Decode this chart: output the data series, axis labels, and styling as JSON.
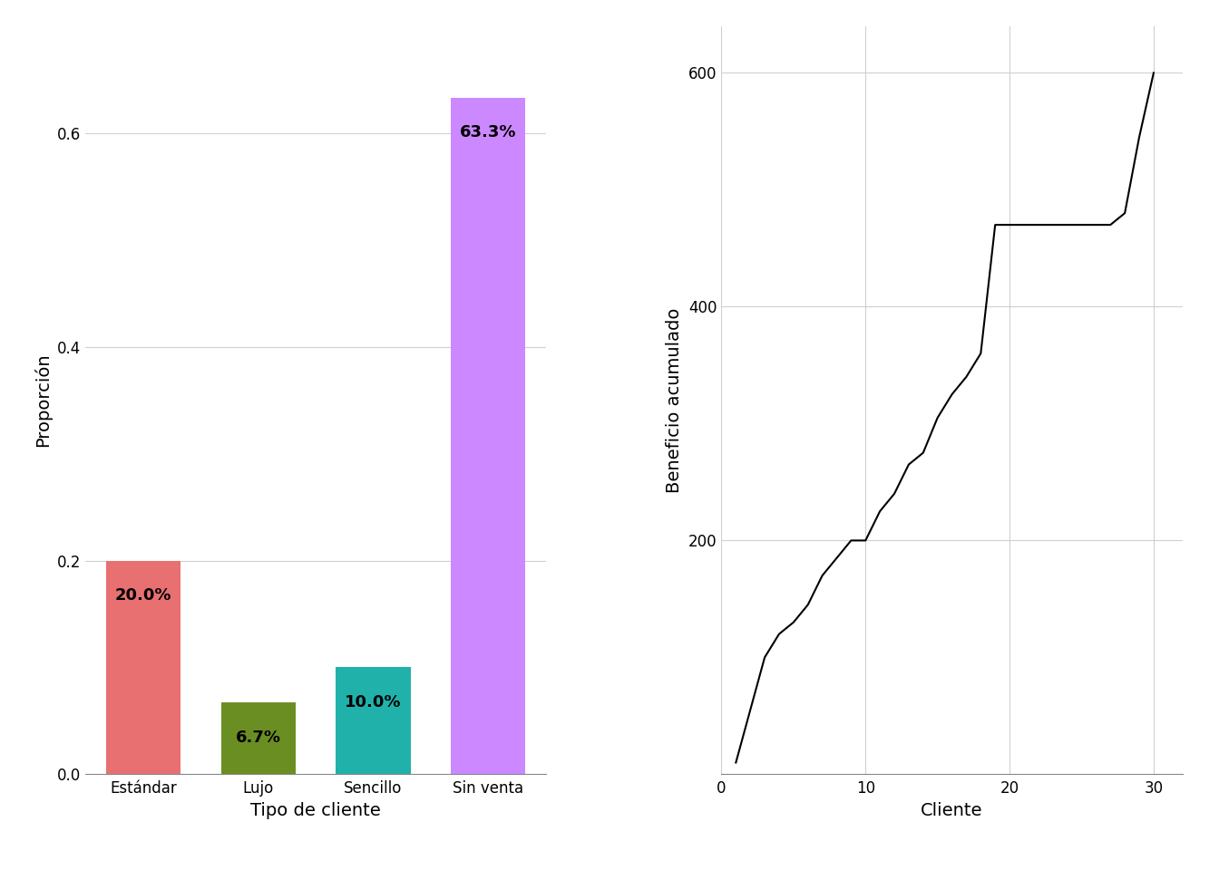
{
  "bar_categories": [
    "Estándar",
    "Lujo",
    "Sencillo",
    "Sin venta"
  ],
  "bar_values": [
    0.2,
    0.067,
    0.1,
    0.633
  ],
  "bar_labels": [
    "20.0%",
    "6.7%",
    "10.0%",
    "63.3%"
  ],
  "bar_colors": [
    "#E87070",
    "#6B8E23",
    "#20B2AA",
    "#CC88FF"
  ],
  "bar_xlabel": "Tipo de cliente",
  "bar_ylabel": "Proporción",
  "bar_ylim": [
    0,
    0.7
  ],
  "bar_yticks": [
    0.0,
    0.2,
    0.4,
    0.6
  ],
  "line_x": [
    1,
    2,
    3,
    4,
    5,
    6,
    7,
    8,
    9,
    10,
    11,
    12,
    13,
    14,
    15,
    16,
    17,
    18,
    19,
    20,
    21,
    22,
    23,
    24,
    25,
    26,
    27,
    28,
    29,
    30
  ],
  "line_y": [
    10,
    55,
    100,
    120,
    130,
    145,
    170,
    185,
    200,
    200,
    225,
    240,
    265,
    275,
    305,
    325,
    340,
    360,
    470,
    470,
    470,
    470,
    470,
    470,
    470,
    470,
    470,
    480,
    545,
    600
  ],
  "line_xlabel": "Cliente",
  "line_ylabel": "Beneficio acumulado",
  "line_xlim": [
    0,
    32
  ],
  "line_ylim": [
    0,
    640
  ],
  "line_xticks": [
    0,
    10,
    20,
    30
  ],
  "line_yticks": [
    200,
    400,
    600
  ],
  "line_color": "#000000",
  "background_color": "#FFFFFF",
  "grid_color": "#D0D0D0",
  "font_size_labels": 14,
  "font_size_ticks": 12,
  "font_size_bar_labels": 13
}
